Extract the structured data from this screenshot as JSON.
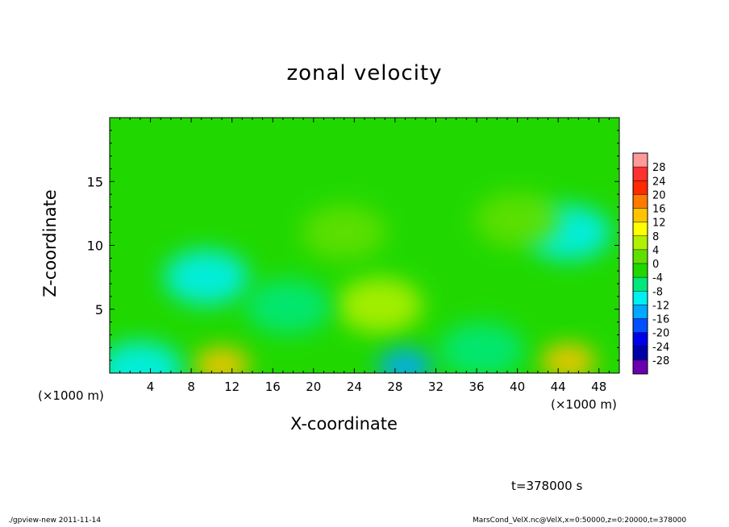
{
  "chart_data": {
    "type": "heatmap",
    "title": "zonal velocity",
    "xlabel": "X-coordinate",
    "ylabel": "Z-coordinate",
    "x_unit": "(×1000 m)",
    "y_unit": "(×1000 m)",
    "xlim": [
      0,
      50
    ],
    "ylim": [
      0,
      20
    ],
    "x_ticks": [
      4,
      8,
      12,
      16,
      20,
      24,
      28,
      32,
      36,
      40,
      44,
      48
    ],
    "y_ticks": [
      5,
      10,
      15
    ],
    "colorbar": {
      "levels": [
        28,
        24,
        20,
        16,
        12,
        8,
        4,
        0,
        -4,
        -8,
        -12,
        -16,
        -20,
        -24,
        -28
      ],
      "colors": [
        "#ff9a9a",
        "#ff3030",
        "#ff2a00",
        "#ff7a00",
        "#ffc400",
        "#ffff00",
        "#b0f000",
        "#60e000",
        "#20d800",
        "#00e87a",
        "#00f0f0",
        "#00a8ff",
        "#0050ff",
        "#0000e8",
        "#0000a8",
        "#6a00b0"
      ]
    },
    "features": [
      {
        "x": 11,
        "z": 0.6,
        "u": 15
      },
      {
        "x": 45,
        "z": 0.9,
        "u": 14
      },
      {
        "x": 26.5,
        "z": 5.3,
        "u": 5
      },
      {
        "x": 23,
        "z": 11,
        "u": 3
      },
      {
        "x": 9.5,
        "z": 7.5,
        "u": -9
      },
      {
        "x": 17.5,
        "z": 5.2,
        "u": -8
      },
      {
        "x": 29,
        "z": 0.5,
        "u": -13
      },
      {
        "x": 45,
        "z": 11,
        "u": -9
      },
      {
        "x": 3,
        "z": 0.3,
        "u": -9
      },
      {
        "x": 36.5,
        "z": 1.8,
        "u": -7
      },
      {
        "x": 40,
        "z": 12,
        "u": 1
      }
    ],
    "time_label": "t=378000 s"
  },
  "footer": {
    "left": "./gpview-new  2011-11-14",
    "right": "MarsCond_VelX.nc@VelX,x=0:50000,z=0:20000,t=378000"
  }
}
